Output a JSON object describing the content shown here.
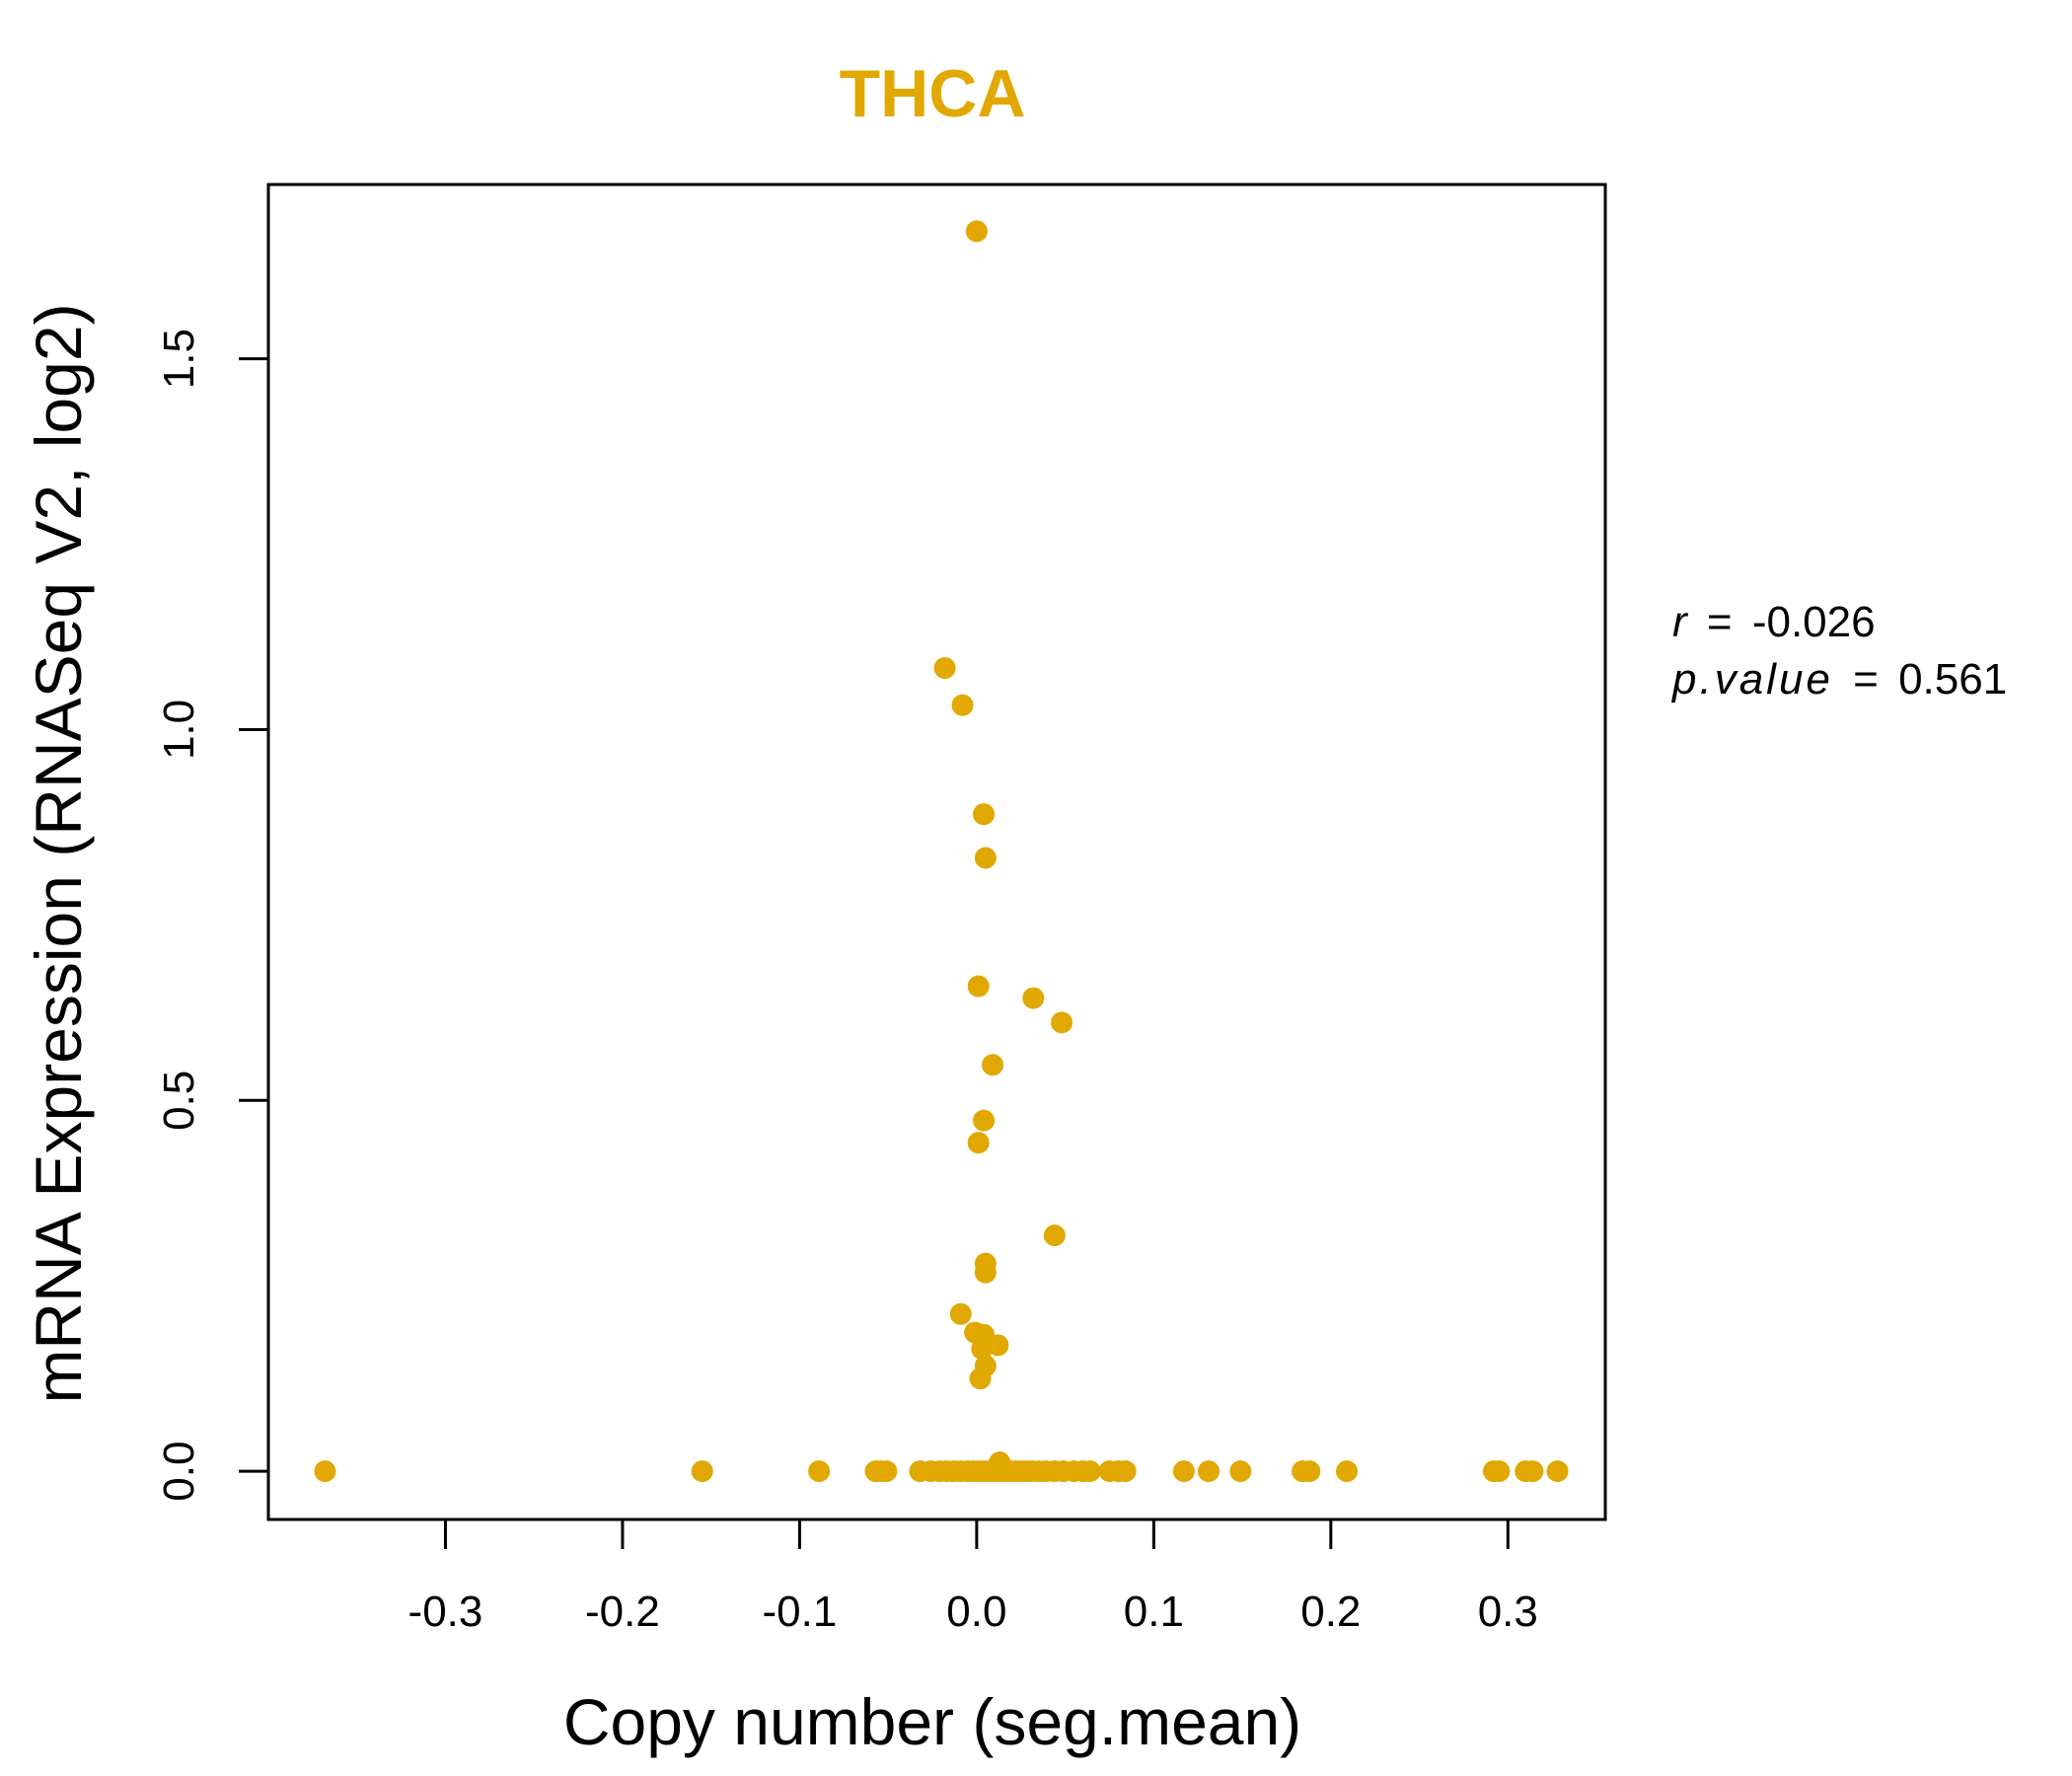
{
  "chart_data": {
    "type": "scatter",
    "title": "THCA",
    "xlabel": "Copy number (seg.mean)",
    "ylabel": "mRNA Expression (RNASeq V2, log2)",
    "xlim": [
      -0.4,
      0.355
    ],
    "ylim": [
      -0.065,
      1.735
    ],
    "xticks": [
      -0.3,
      -0.2,
      -0.1,
      0.0,
      0.1,
      0.2,
      0.3
    ],
    "xtick_labels": [
      "-0.3",
      "-0.2",
      "-0.1",
      "0.0",
      "0.1",
      "0.2",
      "0.3"
    ],
    "yticks": [
      0.0,
      0.5,
      1.0,
      1.5
    ],
    "ytick_labels": [
      "0.0",
      "0.5",
      "1.0",
      "1.5"
    ],
    "grid": false,
    "point_color": "#E0A800",
    "title_color": "#E0A800",
    "annotation": {
      "r_label": "r",
      "r_value": "-0.026",
      "p_label": "p.value",
      "p_value": "0.561",
      "equals": "="
    },
    "points": [
      {
        "x": -0.368,
        "y": 0.0
      },
      {
        "x": -0.155,
        "y": 0.0
      },
      {
        "x": -0.089,
        "y": 0.0
      },
      {
        "x": -0.057,
        "y": 0.0
      },
      {
        "x": -0.054,
        "y": 0.0
      },
      {
        "x": -0.051,
        "y": 0.0
      },
      {
        "x": -0.032,
        "y": 0.0
      },
      {
        "x": -0.026,
        "y": 0.0
      },
      {
        "x": -0.021,
        "y": 0.0
      },
      {
        "x": -0.017,
        "y": 0.0
      },
      {
        "x": -0.013,
        "y": 0.0
      },
      {
        "x": -0.009,
        "y": 0.0
      },
      {
        "x": -0.005,
        "y": 0.0
      },
      {
        "x": -0.002,
        "y": 0.0
      },
      {
        "x": 0.001,
        "y": 0.0
      },
      {
        "x": 0.004,
        "y": 0.0
      },
      {
        "x": 0.007,
        "y": 0.0
      },
      {
        "x": 0.01,
        "y": 0.0
      },
      {
        "x": 0.013,
        "y": 0.0
      },
      {
        "x": 0.016,
        "y": 0.0
      },
      {
        "x": 0.019,
        "y": 0.0
      },
      {
        "x": 0.022,
        "y": 0.0
      },
      {
        "x": 0.025,
        "y": 0.0
      },
      {
        "x": 0.028,
        "y": 0.0
      },
      {
        "x": 0.031,
        "y": 0.0
      },
      {
        "x": 0.035,
        "y": 0.0
      },
      {
        "x": 0.039,
        "y": 0.0
      },
      {
        "x": 0.044,
        "y": 0.0
      },
      {
        "x": 0.049,
        "y": 0.0
      },
      {
        "x": 0.055,
        "y": 0.0
      },
      {
        "x": 0.06,
        "y": 0.0
      },
      {
        "x": 0.064,
        "y": 0.0
      },
      {
        "x": 0.075,
        "y": 0.0
      },
      {
        "x": 0.08,
        "y": 0.0
      },
      {
        "x": 0.084,
        "y": 0.0
      },
      {
        "x": 0.117,
        "y": 0.0
      },
      {
        "x": 0.131,
        "y": 0.0
      },
      {
        "x": 0.149,
        "y": 0.0
      },
      {
        "x": 0.184,
        "y": 0.0
      },
      {
        "x": 0.188,
        "y": 0.0
      },
      {
        "x": 0.209,
        "y": 0.0
      },
      {
        "x": 0.292,
        "y": 0.0
      },
      {
        "x": 0.295,
        "y": 0.0
      },
      {
        "x": 0.31,
        "y": 0.0
      },
      {
        "x": 0.314,
        "y": 0.0
      },
      {
        "x": 0.328,
        "y": 0.0
      },
      {
        "x": 0.013,
        "y": 0.012
      },
      {
        "x": 0.0,
        "y": 1.672
      },
      {
        "x": -0.018,
        "y": 1.083
      },
      {
        "x": -0.008,
        "y": 1.033
      },
      {
        "x": 0.004,
        "y": 0.886
      },
      {
        "x": 0.005,
        "y": 0.827
      },
      {
        "x": 0.001,
        "y": 0.654
      },
      {
        "x": 0.032,
        "y": 0.638
      },
      {
        "x": 0.048,
        "y": 0.605
      },
      {
        "x": 0.009,
        "y": 0.548
      },
      {
        "x": 0.004,
        "y": 0.473
      },
      {
        "x": 0.001,
        "y": 0.443
      },
      {
        "x": 0.044,
        "y": 0.318
      },
      {
        "x": 0.005,
        "y": 0.28
      },
      {
        "x": 0.005,
        "y": 0.268
      },
      {
        "x": -0.009,
        "y": 0.212
      },
      {
        "x": -0.001,
        "y": 0.187
      },
      {
        "x": 0.004,
        "y": 0.184
      },
      {
        "x": 0.012,
        "y": 0.17
      },
      {
        "x": 0.003,
        "y": 0.165
      },
      {
        "x": 0.005,
        "y": 0.142
      },
      {
        "x": 0.002,
        "y": 0.125
      }
    ]
  }
}
